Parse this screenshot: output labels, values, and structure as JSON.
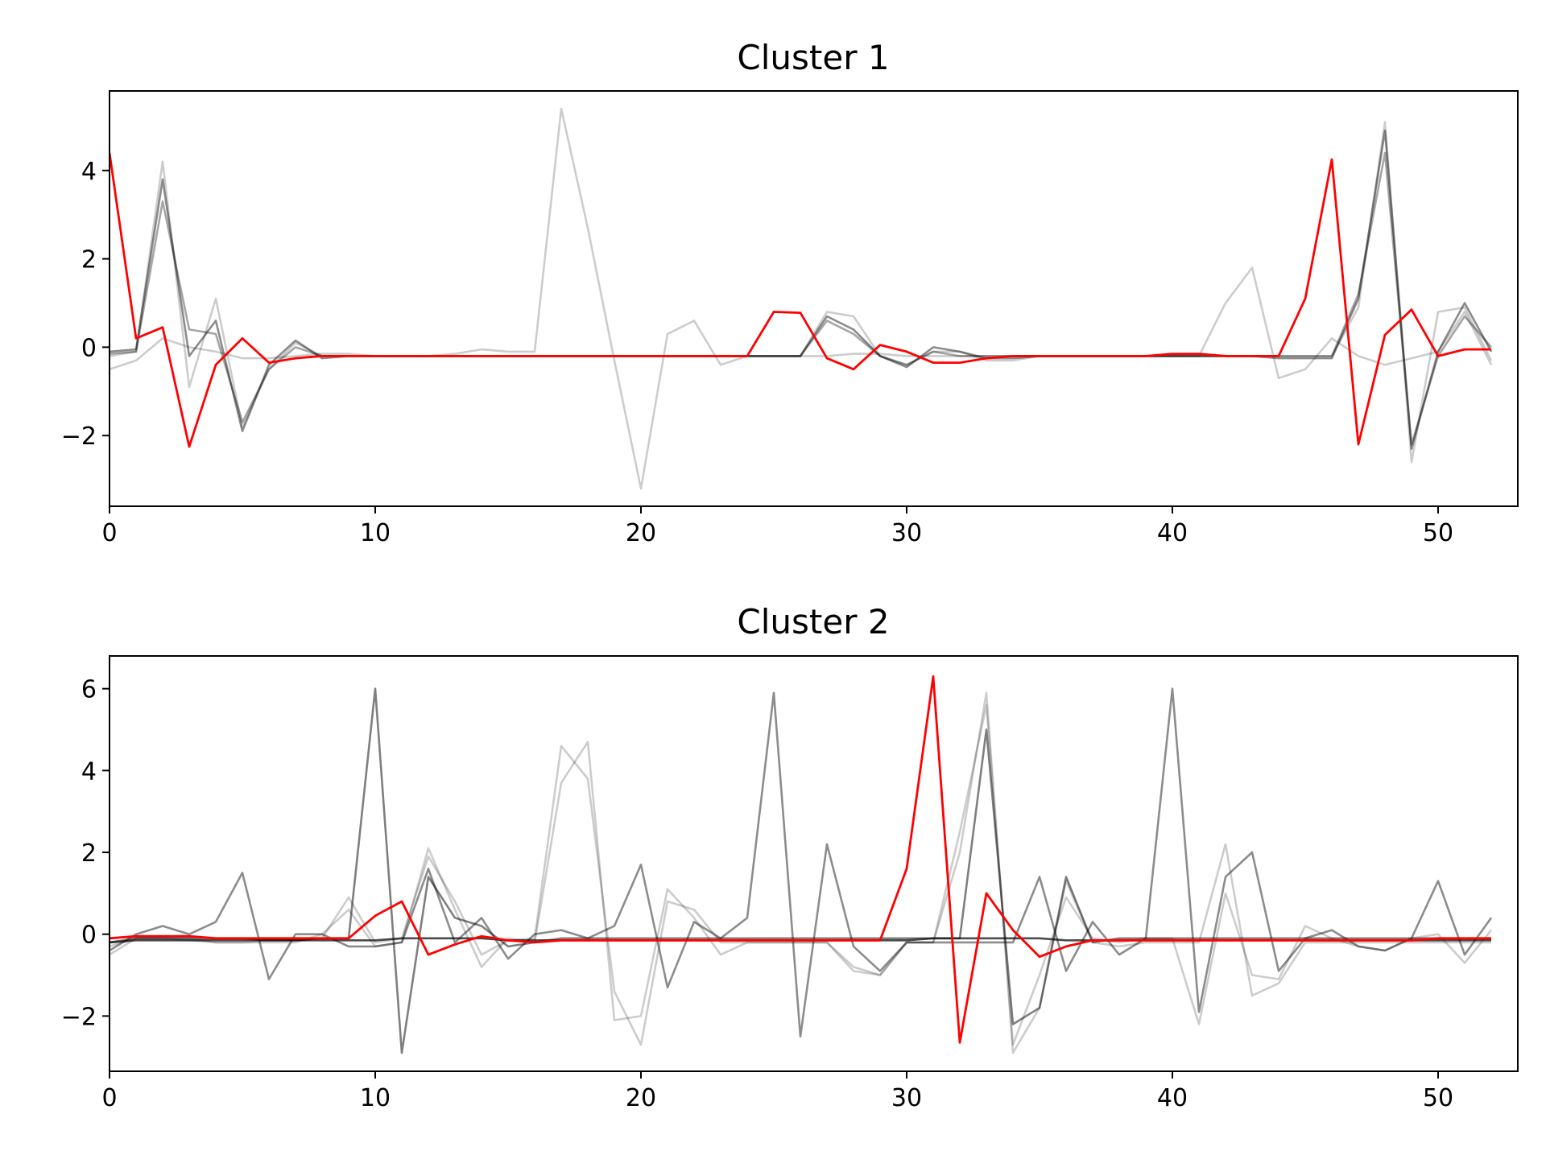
{
  "chart_data": [
    {
      "type": "line",
      "title": "Cluster 1",
      "xlabel": "",
      "ylabel": "",
      "xlim": [
        0,
        53
      ],
      "ylim": [
        -3.6,
        5.8
      ],
      "xticks": [
        0,
        10,
        20,
        30,
        40,
        50
      ],
      "yticks": [
        -2,
        0,
        2,
        4
      ],
      "grid": false,
      "legend": "none",
      "background_style": {
        "color": "#000000",
        "opacity": 0.2,
        "width": 2.6
      },
      "highlight_style": {
        "color": "#ff0000",
        "width": 2.8
      },
      "background_series": [
        {
          "opacity": 0.2,
          "values": [
            -0.5,
            -0.3,
            0.2,
            0.0,
            -0.1,
            -0.25,
            -0.25,
            -0.2,
            -0.15,
            -0.15,
            -0.2,
            -0.2,
            -0.2,
            -0.15,
            -0.05,
            -0.1,
            -0.1,
            5.4,
            2.7,
            -0.3,
            -3.2,
            0.3,
            0.6,
            -0.4,
            -0.2,
            -0.2,
            -0.2,
            -0.2,
            -0.15,
            -0.15,
            -0.2,
            -0.2,
            -0.2,
            -0.2,
            -0.2,
            -0.2,
            -0.2,
            -0.2,
            -0.2,
            -0.2,
            -0.2,
            -0.2,
            1.0,
            1.8,
            -0.7,
            -0.5,
            0.2,
            -0.2,
            -0.4,
            -0.25,
            -0.1,
            0.8,
            -0.4
          ]
        },
        {
          "opacity": 0.2,
          "values": [
            -0.2,
            -0.1,
            4.2,
            -0.9,
            1.1,
            -1.8,
            -0.5,
            0.1,
            -0.2,
            -0.2,
            -0.2,
            -0.2,
            -0.2,
            -0.2,
            -0.2,
            -0.2,
            -0.2,
            -0.2,
            -0.2,
            -0.2,
            -0.2,
            -0.2,
            -0.2,
            -0.2,
            -0.2,
            -0.2,
            -0.2,
            0.8,
            0.7,
            -0.2,
            -0.4,
            -0.1,
            -0.1,
            -0.3,
            -0.3,
            -0.2,
            -0.2,
            -0.2,
            -0.2,
            -0.2,
            -0.2,
            -0.2,
            -0.2,
            -0.2,
            -0.2,
            -0.2,
            -0.2,
            0.9,
            5.1,
            -2.6,
            0.8,
            0.9,
            -0.3
          ]
        },
        {
          "opacity": 0.35,
          "values": [
            -0.15,
            -0.1,
            3.3,
            0.4,
            0.3,
            -1.7,
            -0.5,
            0.0,
            -0.2,
            -0.2,
            -0.2,
            -0.2,
            -0.2,
            -0.2,
            -0.2,
            -0.2,
            -0.2,
            -0.2,
            -0.2,
            -0.2,
            -0.2,
            -0.2,
            -0.2,
            -0.2,
            -0.2,
            -0.2,
            -0.2,
            0.6,
            0.3,
            -0.2,
            -0.4,
            -0.1,
            -0.2,
            -0.2,
            -0.2,
            -0.2,
            -0.2,
            -0.2,
            -0.2,
            -0.2,
            -0.2,
            -0.2,
            -0.2,
            -0.2,
            -0.2,
            -0.2,
            -0.2,
            1.2,
            4.4,
            -2.2,
            -0.2,
            0.7,
            0.0
          ]
        },
        {
          "opacity": 0.45,
          "values": [
            -0.1,
            -0.05,
            3.8,
            -0.2,
            0.6,
            -1.9,
            -0.4,
            0.15,
            -0.25,
            -0.2,
            -0.2,
            -0.2,
            -0.2,
            -0.2,
            -0.2,
            -0.2,
            -0.2,
            -0.2,
            -0.2,
            -0.2,
            -0.2,
            -0.2,
            -0.2,
            -0.2,
            -0.2,
            -0.2,
            -0.2,
            0.7,
            0.4,
            -0.2,
            -0.45,
            0.0,
            -0.1,
            -0.25,
            -0.25,
            -0.2,
            -0.2,
            -0.2,
            -0.2,
            -0.2,
            -0.2,
            -0.2,
            -0.2,
            -0.2,
            -0.25,
            -0.25,
            -0.25,
            1.1,
            4.9,
            -2.3,
            -0.1,
            1.0,
            -0.1
          ]
        }
      ],
      "highlight_series": {
        "values": [
          4.4,
          0.2,
          0.45,
          -2.25,
          -0.4,
          0.2,
          -0.35,
          -0.25,
          -0.2,
          -0.2,
          -0.2,
          -0.2,
          -0.2,
          -0.2,
          -0.2,
          -0.2,
          -0.2,
          -0.2,
          -0.2,
          -0.2,
          -0.2,
          -0.2,
          -0.2,
          -0.2,
          -0.2,
          0.8,
          0.78,
          -0.25,
          -0.5,
          0.05,
          -0.1,
          -0.35,
          -0.35,
          -0.25,
          -0.2,
          -0.2,
          -0.2,
          -0.2,
          -0.2,
          -0.2,
          -0.15,
          -0.15,
          -0.2,
          -0.2,
          -0.2,
          1.1,
          4.25,
          -2.2,
          0.28,
          0.85,
          -0.2,
          -0.05,
          -0.05
        ]
      }
    },
    {
      "type": "line",
      "title": "Cluster 2",
      "xlabel": "",
      "ylabel": "",
      "xlim": [
        0,
        53
      ],
      "ylim": [
        -3.35,
        6.8
      ],
      "xticks": [
        0,
        10,
        20,
        30,
        40,
        50
      ],
      "yticks": [
        -2,
        0,
        2,
        4,
        6
      ],
      "grid": false,
      "legend": "none",
      "background_style": {
        "color": "#000000",
        "opacity": 0.2,
        "width": 2.6
      },
      "highlight_style": {
        "color": "#ff0000",
        "width": 2.8
      },
      "background_series": [
        {
          "opacity": 0.2,
          "values": [
            -0.5,
            -0.1,
            -0.1,
            -0.15,
            -0.2,
            -0.2,
            -0.2,
            -0.2,
            0.0,
            0.6,
            -0.3,
            -0.2,
            2.1,
            0.6,
            -0.8,
            -0.1,
            -0.2,
            3.7,
            4.7,
            -2.1,
            -2.0,
            1.1,
            0.4,
            -0.5,
            -0.2,
            -0.2,
            -0.2,
            -0.2,
            -0.9,
            -1.0,
            -0.2,
            -0.2,
            2.0,
            5.9,
            -2.9,
            -1.8,
            1.3,
            -0.2,
            -0.3,
            -0.2,
            -0.2,
            -0.2,
            2.2,
            -1.5,
            -1.2,
            -0.2,
            -0.2,
            -0.2,
            -0.2,
            -0.2,
            -0.2,
            -0.2,
            -0.2
          ]
        },
        {
          "opacity": 0.2,
          "values": [
            -0.3,
            -0.1,
            -0.1,
            -0.1,
            -0.2,
            -0.2,
            -0.15,
            -0.15,
            -0.1,
            0.9,
            -0.2,
            -0.1,
            1.9,
            0.8,
            -0.5,
            -0.15,
            -0.1,
            4.6,
            3.8,
            -1.4,
            -2.7,
            0.8,
            0.6,
            -0.2,
            -0.2,
            -0.2,
            -0.2,
            -0.2,
            -0.8,
            -1.0,
            -0.2,
            -0.2,
            2.5,
            5.6,
            -2.7,
            -1.0,
            0.9,
            -0.1,
            -0.2,
            -0.1,
            -0.1,
            -2.2,
            1.0,
            -1.0,
            -1.1,
            0.2,
            -0.1,
            -0.3,
            -0.4,
            -0.1,
            0.0,
            -0.7,
            0.1
          ]
        },
        {
          "opacity": 0.45,
          "values": [
            -0.4,
            0.0,
            0.2,
            0.0,
            0.3,
            1.5,
            -1.1,
            0.0,
            0.0,
            -0.3,
            -0.3,
            -0.2,
            1.6,
            -0.2,
            0.4,
            -0.6,
            0.0,
            0.1,
            -0.1,
            0.2,
            1.7,
            -1.3,
            0.3,
            -0.1,
            0.4,
            5.9,
            -2.5,
            2.2,
            -0.3,
            -0.9,
            -0.2,
            -0.2,
            -0.2,
            -0.2,
            -0.2,
            1.4,
            -0.9,
            0.3,
            -0.5,
            -0.1,
            6.0,
            -1.9,
            1.4,
            2.0,
            -0.9,
            -0.1,
            0.1,
            -0.3,
            -0.4,
            -0.1,
            1.3,
            -0.5,
            0.4
          ]
        },
        {
          "opacity": 0.5,
          "values": [
            -0.2,
            -0.1,
            -0.1,
            -0.1,
            -0.1,
            -0.1,
            -0.15,
            -0.15,
            -0.1,
            -0.1,
            6.0,
            -2.9,
            1.4,
            0.4,
            0.2,
            -0.3,
            -0.2,
            -0.1,
            -0.1,
            -0.1,
            -0.1,
            -0.1,
            -0.1,
            -0.1,
            -0.1,
            -0.1,
            -0.1,
            -0.1,
            -0.1,
            -0.1,
            -0.1,
            -0.1,
            -0.1,
            5.0,
            -2.2,
            -1.8,
            1.4,
            -0.2,
            -0.1,
            -0.1,
            -0.1,
            -0.1,
            -0.1,
            -0.1,
            -0.1,
            -0.1,
            -0.1,
            -0.1,
            -0.1,
            -0.1,
            -0.1,
            -0.1,
            -0.1
          ]
        },
        {
          "opacity": 0.7,
          "values": [
            -0.2,
            -0.15,
            -0.15,
            -0.15,
            -0.15,
            -0.15,
            -0.15,
            -0.15,
            -0.15,
            -0.15,
            -0.15,
            -0.1,
            -0.1,
            -0.1,
            -0.1,
            -0.15,
            -0.15,
            -0.15,
            -0.15,
            -0.15,
            -0.15,
            -0.15,
            -0.15,
            -0.15,
            -0.15,
            -0.15,
            -0.15,
            -0.15,
            -0.15,
            -0.15,
            -0.15,
            -0.1,
            -0.1,
            -0.1,
            -0.1,
            -0.1,
            -0.15,
            -0.15,
            -0.15,
            -0.15,
            -0.15,
            -0.15,
            -0.15,
            -0.15,
            -0.15,
            -0.15,
            -0.15,
            -0.15,
            -0.15,
            -0.15,
            -0.15,
            -0.15,
            -0.15
          ]
        }
      ],
      "highlight_series": {
        "values": [
          -0.1,
          -0.05,
          -0.05,
          -0.05,
          -0.1,
          -0.1,
          -0.1,
          -0.1,
          -0.1,
          -0.1,
          0.45,
          0.8,
          -0.5,
          -0.25,
          -0.05,
          -0.15,
          -0.2,
          -0.15,
          -0.15,
          -0.15,
          -0.15,
          -0.15,
          -0.15,
          -0.15,
          -0.15,
          -0.15,
          -0.15,
          -0.15,
          -0.15,
          -0.15,
          1.6,
          6.3,
          -2.65,
          1.0,
          0.1,
          -0.55,
          -0.3,
          -0.15,
          -0.15,
          -0.15,
          -0.15,
          -0.15,
          -0.15,
          -0.15,
          -0.15,
          -0.15,
          -0.15,
          -0.15,
          -0.15,
          -0.15,
          -0.1,
          -0.1,
          -0.1
        ]
      }
    }
  ]
}
